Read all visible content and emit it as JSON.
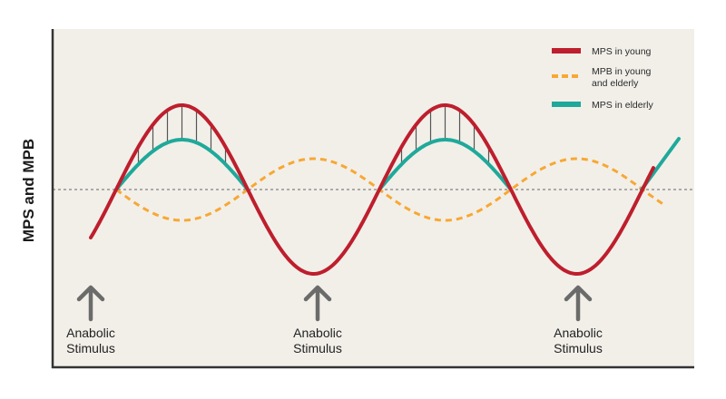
{
  "chart_data": {
    "type": "line",
    "title": "",
    "ylabel": "MPS and MPB",
    "xlabel": "",
    "grid": false,
    "baseline": "dashed horizontal reference line",
    "legend_position": "top-right",
    "colors": {
      "background": "#f2efe9",
      "axis": "#333333",
      "baseline": "#666666",
      "hatch": "#555555",
      "arrow": "#6b6b6b"
    },
    "series": [
      {
        "name": "MPS in young",
        "color": "#be1e2d",
        "style": "solid"
      },
      {
        "name": "MPB in young and elderly",
        "color": "#f7a833",
        "style": "dashed"
      },
      {
        "name": "MPS in elderly",
        "color": "#1fa99a",
        "style": "solid"
      }
    ],
    "legend": [
      {
        "lines": [
          "MPS in young"
        ],
        "color": "#be1e2d",
        "dashed": false
      },
      {
        "lines": [
          "MPB in young",
          "and elderly"
        ],
        "color": "#f7a833",
        "dashed": true
      },
      {
        "lines": [
          "MPS in elderly"
        ],
        "color": "#1fa99a",
        "dashed": false
      }
    ],
    "annotations": [
      {
        "lines": [
          "Anabolic",
          "Stimulus"
        ],
        "icon": "up-arrow-icon"
      },
      {
        "lines": [
          "Anabolic",
          "Stimulus"
        ],
        "icon": "up-arrow-icon"
      },
      {
        "lines": [
          "Anabolic",
          "Stimulus"
        ],
        "icon": "up-arrow-icon"
      }
    ]
  }
}
